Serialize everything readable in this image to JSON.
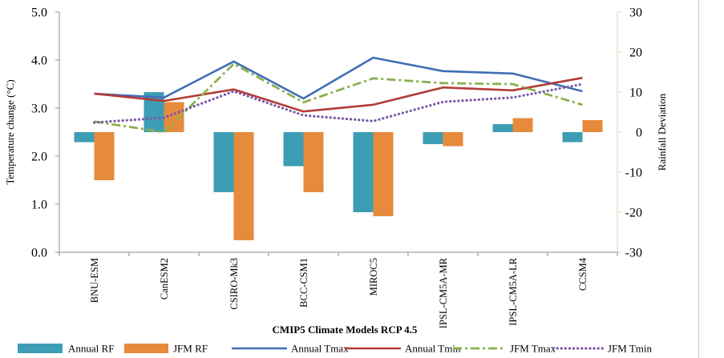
{
  "chart_data": {
    "type": "bar",
    "categories": [
      "BNU-ESM",
      "CanESM2",
      "CSIRO-Mk3",
      "BCC-CSM1",
      "MIROC5",
      "IPSL-CM5A-MR",
      "IPSL-CM5A-LR",
      "CCSM4"
    ],
    "xlabel": "CMIP5 Climate Models RCP 4.5",
    "ylabel": "Temperature change (°C)",
    "y2label": "Rainfall Deviation",
    "ylim": [
      0,
      5
    ],
    "y2lim": [
      -30,
      30
    ],
    "yticks": [
      "0.0",
      "1.0",
      "2.0",
      "3.0",
      "4.0",
      "5.0"
    ],
    "y2ticks": [
      "-30",
      "-20",
      "-10",
      "0",
      "10",
      "20",
      "30"
    ],
    "grid": false,
    "legend_position": "bottom",
    "series": [
      {
        "name": "Annual RF",
        "kind": "bar",
        "axis": "right",
        "color": "#3d9db4",
        "values": [
          -2.5,
          10,
          -15,
          -8.5,
          -20,
          -3,
          2,
          -2.5
        ]
      },
      {
        "name": "JFM RF",
        "kind": "bar",
        "axis": "right",
        "color": "#e68a3c",
        "values": [
          -12,
          7.5,
          -27,
          -15,
          -21,
          -3.5,
          3.5,
          3
        ]
      },
      {
        "name": "Annual Tmax",
        "kind": "line",
        "axis": "left",
        "style": "solid",
        "color": "#3f6fb5",
        "values": [
          3.3,
          3.22,
          3.97,
          3.2,
          4.05,
          3.77,
          3.72,
          3.35
        ]
      },
      {
        "name": "Annual Tmin",
        "kind": "line",
        "axis": "left",
        "style": "solid",
        "color": "#b33b35",
        "values": [
          3.3,
          3.15,
          3.39,
          2.93,
          3.07,
          3.43,
          3.37,
          3.63
        ]
      },
      {
        "name": "JFM Tmax",
        "kind": "line",
        "axis": "left",
        "style": "dash-dot",
        "color": "#8cb04b",
        "values": [
          2.72,
          2.5,
          3.92,
          3.12,
          3.62,
          3.52,
          3.5,
          3.07
        ]
      },
      {
        "name": "JFM Tmin",
        "kind": "line",
        "axis": "left",
        "style": "dotted",
        "color": "#7a58a6",
        "values": [
          2.7,
          2.8,
          3.35,
          2.85,
          2.73,
          3.13,
          3.22,
          3.5
        ]
      }
    ]
  }
}
